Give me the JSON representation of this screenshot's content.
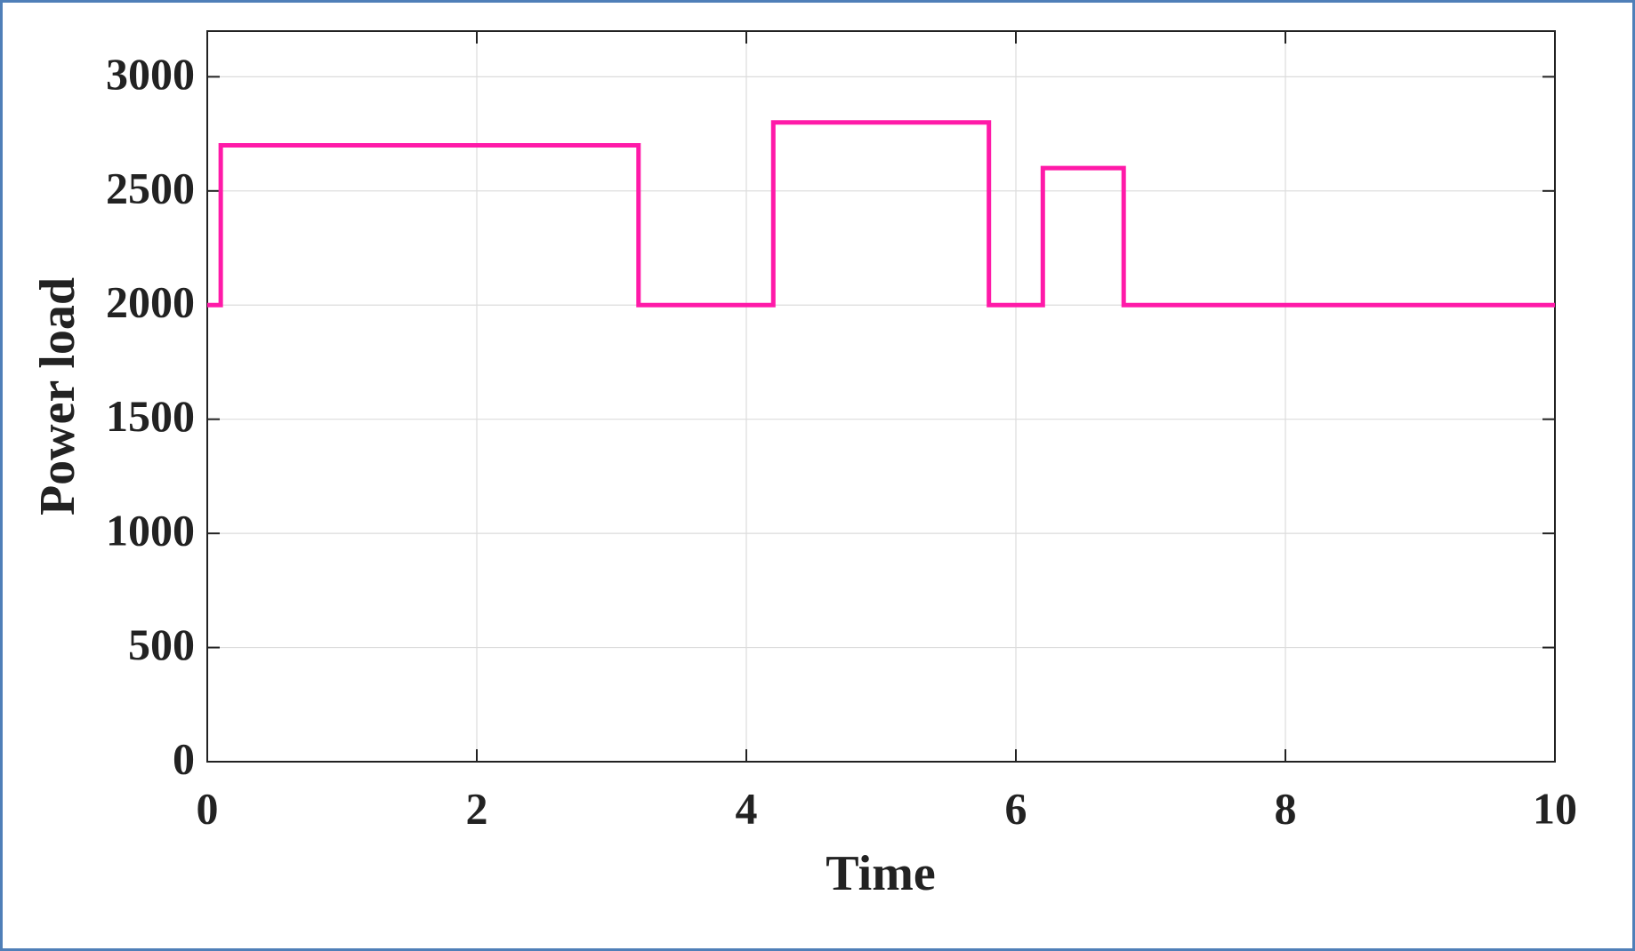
{
  "chart_data": {
    "type": "line",
    "x": [
      0,
      0.1,
      0.1,
      3.2,
      3.2,
      4.2,
      4.2,
      5.8,
      5.8,
      6.2,
      6.2,
      6.8,
      6.8,
      10
    ],
    "values": [
      2000,
      2000,
      2700,
      2700,
      2000,
      2000,
      2800,
      2800,
      2000,
      2000,
      2600,
      2600,
      2000,
      2000
    ],
    "color": "#ff1aa8",
    "xlabel": "Time",
    "ylabel": "Power load",
    "xlim": [
      0,
      10
    ],
    "xticks": [
      0,
      2,
      4,
      6,
      8,
      10
    ],
    "ylim": [
      0,
      3200
    ],
    "yticks": [
      0,
      500,
      1000,
      1500,
      2000,
      2500,
      3000
    ],
    "grid": true
  }
}
